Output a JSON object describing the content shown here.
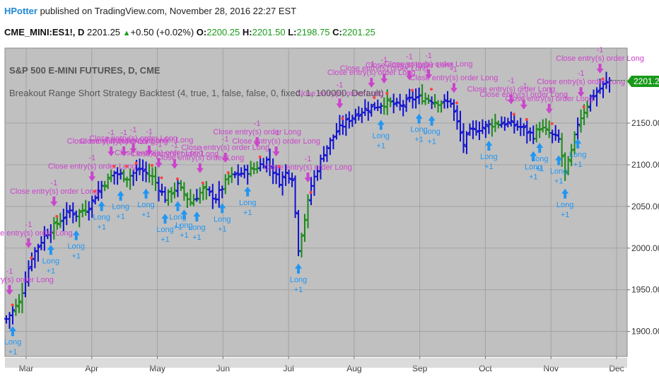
{
  "header": {
    "author": "HPotter",
    "published_text": " published on TradingView.com, November 28, 2016 22:27 EST"
  },
  "ticker": {
    "symbol": "CME_MINI:ES1!, D",
    "last": "2201.25",
    "change": "+0.50 (+0.02%)",
    "o_label": "O:",
    "o_value": "2200.25",
    "h_label": "H:",
    "h_value": "2201.50",
    "l_label": "L:",
    "l_value": "2198.75",
    "c_label": "C:",
    "c_value": "2201.25"
  },
  "chart_data": {
    "type": "ohlc",
    "title": "S&P 500 E-MINI FUTURES, D, CME",
    "subtitle": "Breakout Range Short Strategy Backtest (4, true, 1, false, false, 0, fixed, 1, 100000, Default)",
    "last_price_label": "2201.25",
    "ylim": [
      1870,
      2240
    ],
    "y_ticks": [
      "2150.00",
      "2100.00",
      "2050.00",
      "2000.00",
      "1950.00",
      "1900.00"
    ],
    "x_ticks": [
      "Mar",
      "Apr",
      "May",
      "Jun",
      "Jul",
      "Aug",
      "Sep",
      "Oct",
      "Nov",
      "Dec"
    ],
    "close_path": [
      [
        0,
        1915
      ],
      [
        4,
        1935
      ],
      [
        8,
        1990
      ],
      [
        12,
        2015
      ],
      [
        16,
        2030
      ],
      [
        20,
        2045
      ],
      [
        22,
        2040
      ],
      [
        26,
        2050
      ],
      [
        30,
        2075
      ],
      [
        34,
        2090
      ],
      [
        38,
        2085
      ],
      [
        42,
        2095
      ],
      [
        46,
        2085
      ],
      [
        50,
        2060
      ],
      [
        54,
        2075
      ],
      [
        58,
        2055
      ],
      [
        62,
        2070
      ],
      [
        66,
        2060
      ],
      [
        70,
        2085
      ],
      [
        74,
        2090
      ],
      [
        78,
        2095
      ],
      [
        82,
        2105
      ],
      [
        86,
        2080
      ],
      [
        88,
        2090
      ],
      [
        90,
        2085
      ],
      [
        92,
        2000
      ],
      [
        94,
        2035
      ],
      [
        96,
        2075
      ],
      [
        98,
        2095
      ],
      [
        100,
        2115
      ],
      [
        104,
        2140
      ],
      [
        108,
        2155
      ],
      [
        112,
        2165
      ],
      [
        116,
        2170
      ],
      [
        120,
        2175
      ],
      [
        124,
        2170
      ],
      [
        128,
        2180
      ],
      [
        132,
        2180
      ],
      [
        136,
        2175
      ],
      [
        140,
        2175
      ],
      [
        144,
        2125
      ],
      [
        146,
        2140
      ],
      [
        150,
        2145
      ],
      [
        154,
        2150
      ],
      [
        158,
        2150
      ],
      [
        162,
        2145
      ],
      [
        166,
        2135
      ],
      [
        168,
        2145
      ],
      [
        170,
        2140
      ],
      [
        174,
        2130
      ],
      [
        176,
        2090
      ],
      [
        178,
        2115
      ],
      [
        180,
        2150
      ],
      [
        184,
        2180
      ],
      [
        188,
        2195
      ],
      [
        190,
        2201
      ]
    ],
    "long_entry_label": "Long",
    "long_qty_label": "+1",
    "close_label": "Close entry(s) order Long",
    "close_qty_label": "-1",
    "long_entries": [
      2,
      14,
      22,
      30,
      36,
      44,
      50,
      54,
      56,
      60,
      68,
      76,
      92,
      118,
      130,
      134,
      152,
      166,
      168,
      174,
      176,
      180
    ],
    "close_exits": [
      1,
      7,
      15,
      27,
      33,
      37,
      40,
      45,
      48,
      53,
      61,
      69,
      79,
      85,
      95,
      105,
      115,
      119,
      127,
      133,
      141,
      159,
      163,
      171,
      181,
      187
    ]
  }
}
